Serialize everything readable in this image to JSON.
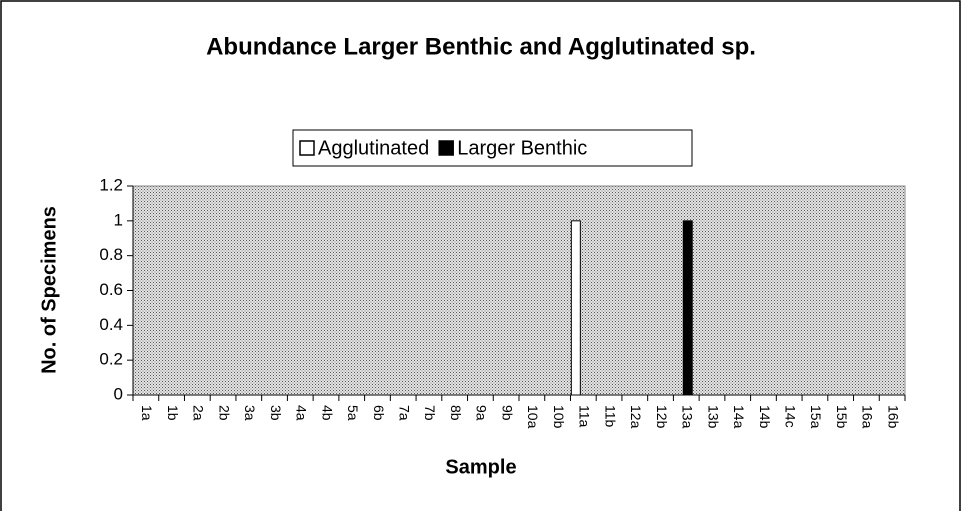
{
  "chart_data": {
    "type": "bar",
    "title": "Abundance Larger Benthic and Agglutinated sp.",
    "xlabel": "Sample",
    "ylabel": "No. of Specimens",
    "categories": [
      "1a",
      "1b",
      "2a",
      "2b",
      "3a",
      "3b",
      "4a",
      "4b",
      "5a",
      "6b",
      "7a",
      "7b",
      "8b",
      "9a",
      "9b",
      "10a",
      "10b",
      "11a",
      "11b",
      "12a",
      "12b",
      "13a",
      "13b",
      "14a",
      "14b",
      "14c",
      "15a",
      "15b",
      "16a",
      "16b"
    ],
    "series": [
      {
        "name": "Agglutinated",
        "color": "#ffffff",
        "values": [
          0,
          0,
          0,
          0,
          0,
          0,
          0,
          0,
          0,
          0,
          0,
          0,
          0,
          0,
          0,
          0,
          0,
          1,
          0,
          0,
          0,
          0,
          0,
          0,
          0,
          0,
          0,
          0,
          0,
          0
        ]
      },
      {
        "name": "Larger Benthic",
        "color": "#000000",
        "values": [
          0,
          0,
          0,
          0,
          0,
          0,
          0,
          0,
          0,
          0,
          0,
          0,
          0,
          0,
          0,
          0,
          0,
          0,
          0,
          0,
          0,
          1,
          0,
          0,
          0,
          0,
          0,
          0,
          0,
          0
        ]
      }
    ],
    "ylim": [
      0,
      1.2
    ],
    "yticks": [
      0,
      0.2,
      0.4,
      0.6,
      0.8,
      1,
      1.2
    ],
    "legend": "top"
  }
}
